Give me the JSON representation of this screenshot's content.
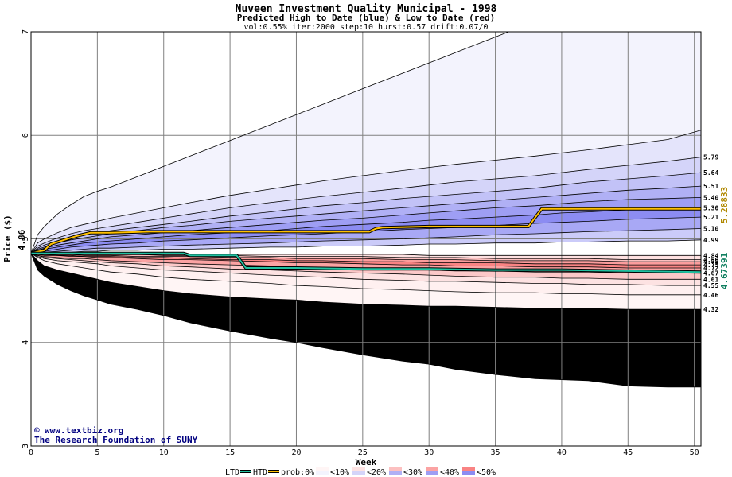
{
  "chart_data": {
    "type": "area",
    "title": "Nuveen Investment Quality Municipal - 1998",
    "subtitle": "Predicted High to Date (blue) &  Low to Date (red)",
    "params": "vol:0.55% iter:2000 step:10 hurst:0.57 drift:0.07/0",
    "xlabel": "Week",
    "ylabel": "Price ($)",
    "xlim": [
      0,
      50.5
    ],
    "ylim": [
      3,
      7
    ],
    "x_ticks": [
      0,
      5,
      10,
      15,
      20,
      25,
      30,
      35,
      40,
      45,
      50
    ],
    "y_ticks": [
      3,
      4,
      5,
      6,
      7
    ],
    "start_price": 4.86,
    "start_price_label": "4.86",
    "grid": true,
    "x": [
      0,
      0.5,
      1,
      2,
      3,
      4,
      5,
      6,
      8,
      10,
      12,
      15,
      18,
      20,
      22,
      25,
      28,
      30,
      32,
      35,
      38,
      40,
      42,
      45,
      48,
      50.5
    ],
    "high_bands": [
      {
        "label": "6.05",
        "values": [
          4.86,
          5.04,
          5.12,
          5.24,
          5.33,
          5.41,
          5.46,
          5.5,
          5.6,
          5.7,
          5.8,
          5.95,
          6.1,
          6.2,
          6.3,
          6.45,
          6.6,
          6.7,
          6.8,
          6.95,
          7.1,
          7.2,
          7.3,
          7.45,
          7.55,
          7.7
        ]
      },
      {
        "label": "5.79",
        "values": [
          4.86,
          4.96,
          5.0,
          5.06,
          5.11,
          5.14,
          5.17,
          5.2,
          5.25,
          5.3,
          5.35,
          5.42,
          5.48,
          5.52,
          5.56,
          5.61,
          5.66,
          5.69,
          5.72,
          5.76,
          5.8,
          5.83,
          5.86,
          5.91,
          5.96,
          6.05
        ]
      },
      {
        "label": "5.64",
        "values": [
          4.86,
          4.93,
          4.96,
          5.01,
          5.05,
          5.08,
          5.1,
          5.12,
          5.16,
          5.2,
          5.24,
          5.3,
          5.35,
          5.38,
          5.41,
          5.45,
          5.49,
          5.52,
          5.55,
          5.58,
          5.61,
          5.64,
          5.67,
          5.71,
          5.75,
          5.79
        ]
      },
      {
        "label": "5.51",
        "values": [
          4.86,
          4.91,
          4.94,
          4.98,
          5.01,
          5.04,
          5.06,
          5.08,
          5.11,
          5.14,
          5.17,
          5.22,
          5.26,
          5.29,
          5.32,
          5.35,
          5.39,
          5.41,
          5.43,
          5.46,
          5.49,
          5.52,
          5.55,
          5.58,
          5.61,
          5.64
        ]
      },
      {
        "label": "5.40",
        "values": [
          4.86,
          4.9,
          4.92,
          4.96,
          4.99,
          5.01,
          5.03,
          5.05,
          5.08,
          5.11,
          5.13,
          5.17,
          5.2,
          5.22,
          5.24,
          5.27,
          5.3,
          5.32,
          5.34,
          5.37,
          5.4,
          5.42,
          5.44,
          5.47,
          5.49,
          5.51
        ]
      },
      {
        "label": "5.30",
        "values": [
          4.86,
          4.89,
          4.91,
          4.94,
          4.96,
          4.98,
          5.0,
          5.02,
          5.04,
          5.06,
          5.08,
          5.11,
          5.14,
          5.16,
          5.18,
          5.2,
          5.23,
          5.25,
          5.27,
          5.3,
          5.32,
          5.34,
          5.36,
          5.38,
          5.39,
          5.4
        ]
      },
      {
        "label": "5.21",
        "values": [
          4.86,
          4.88,
          4.9,
          4.92,
          4.94,
          4.96,
          4.97,
          4.98,
          5.0,
          5.02,
          5.04,
          5.06,
          5.08,
          5.1,
          5.12,
          5.14,
          5.16,
          5.18,
          5.19,
          5.21,
          5.23,
          5.25,
          5.26,
          5.28,
          5.29,
          5.3
        ]
      },
      {
        "label": "5.10",
        "values": [
          4.86,
          4.87,
          4.88,
          4.9,
          4.92,
          4.93,
          4.94,
          4.95,
          4.96,
          4.98,
          4.99,
          5.01,
          5.03,
          5.04,
          5.05,
          5.07,
          5.09,
          5.1,
          5.11,
          5.13,
          5.15,
          5.16,
          5.17,
          5.19,
          5.2,
          5.21
        ]
      },
      {
        "label": "4.99",
        "values": [
          4.86,
          4.87,
          4.87,
          4.88,
          4.89,
          4.9,
          4.91,
          4.91,
          4.92,
          4.93,
          4.94,
          4.95,
          4.96,
          4.97,
          4.98,
          4.99,
          5.0,
          5.01,
          5.02,
          5.04,
          5.05,
          5.06,
          5.07,
          5.08,
          5.09,
          5.1
        ]
      },
      {
        "label": "",
        "values": [
          4.86,
          4.86,
          4.86,
          4.87,
          4.87,
          4.88,
          4.88,
          4.89,
          4.89,
          4.9,
          4.9,
          4.91,
          4.92,
          4.92,
          4.93,
          4.93,
          4.94,
          4.95,
          4.95,
          4.96,
          4.96,
          4.97,
          4.97,
          4.98,
          4.98,
          4.99
        ]
      }
    ],
    "low_bands": [
      {
        "label": "4.84",
        "values": [
          4.86,
          4.86,
          4.86,
          4.86,
          4.86,
          4.86,
          4.86,
          4.86,
          4.86,
          4.86,
          4.85,
          4.85,
          4.85,
          4.85,
          4.85,
          4.85,
          4.85,
          4.84,
          4.84,
          4.84,
          4.84,
          4.84,
          4.84,
          4.84,
          4.84,
          4.84
        ]
      },
      {
        "label": "4.80",
        "values": [
          4.86,
          4.86,
          4.86,
          4.86,
          4.85,
          4.85,
          4.85,
          4.85,
          4.85,
          4.84,
          4.84,
          4.84,
          4.83,
          4.83,
          4.83,
          4.83,
          4.82,
          4.82,
          4.82,
          4.81,
          4.81,
          4.81,
          4.81,
          4.8,
          4.8,
          4.8
        ]
      },
      {
        "label": "4.78",
        "values": [
          4.86,
          4.86,
          4.85,
          4.85,
          4.85,
          4.84,
          4.84,
          4.84,
          4.83,
          4.83,
          4.83,
          4.82,
          4.82,
          4.81,
          4.81,
          4.81,
          4.8,
          4.8,
          4.8,
          4.79,
          4.79,
          4.79,
          4.79,
          4.78,
          4.78,
          4.78
        ]
      },
      {
        "label": "4.75",
        "values": [
          4.86,
          4.85,
          4.85,
          4.84,
          4.84,
          4.83,
          4.83,
          4.83,
          4.82,
          4.82,
          4.81,
          4.8,
          4.8,
          4.79,
          4.79,
          4.78,
          4.78,
          4.77,
          4.77,
          4.77,
          4.76,
          4.76,
          4.76,
          4.75,
          4.75,
          4.75
        ]
      },
      {
        "label": "4.72",
        "values": [
          4.86,
          4.85,
          4.84,
          4.84,
          4.83,
          4.83,
          4.82,
          4.82,
          4.81,
          4.8,
          4.8,
          4.79,
          4.78,
          4.77,
          4.77,
          4.76,
          4.75,
          4.75,
          4.74,
          4.74,
          4.73,
          4.73,
          4.73,
          4.72,
          4.72,
          4.72
        ]
      },
      {
        "label": "4.67",
        "values": [
          4.86,
          4.84,
          4.83,
          4.82,
          4.81,
          4.81,
          4.8,
          4.79,
          4.78,
          4.77,
          4.76,
          4.75,
          4.74,
          4.73,
          4.72,
          4.71,
          4.7,
          4.7,
          4.69,
          4.69,
          4.68,
          4.68,
          4.68,
          4.67,
          4.67,
          4.67
        ]
      },
      {
        "label": "4.61",
        "values": [
          4.86,
          4.84,
          4.82,
          4.81,
          4.8,
          4.79,
          4.78,
          4.77,
          4.76,
          4.74,
          4.73,
          4.71,
          4.7,
          4.69,
          4.68,
          4.67,
          4.66,
          4.65,
          4.64,
          4.63,
          4.63,
          4.62,
          4.62,
          4.61,
          4.61,
          4.61
        ]
      },
      {
        "label": "4.55",
        "values": [
          4.86,
          4.83,
          4.81,
          4.79,
          4.78,
          4.77,
          4.76,
          4.74,
          4.72,
          4.7,
          4.69,
          4.67,
          4.65,
          4.64,
          4.63,
          4.61,
          4.6,
          4.59,
          4.59,
          4.58,
          4.57,
          4.57,
          4.56,
          4.56,
          4.55,
          4.55
        ]
      },
      {
        "label": "4.46",
        "values": [
          4.86,
          4.82,
          4.79,
          4.76,
          4.74,
          4.72,
          4.7,
          4.68,
          4.66,
          4.63,
          4.61,
          4.59,
          4.57,
          4.55,
          4.54,
          4.52,
          4.51,
          4.5,
          4.49,
          4.48,
          4.48,
          4.47,
          4.47,
          4.46,
          4.46,
          4.46
        ]
      },
      {
        "label": "4.32",
        "values": [
          4.86,
          4.79,
          4.74,
          4.7,
          4.67,
          4.64,
          4.61,
          4.58,
          4.54,
          4.5,
          4.47,
          4.44,
          4.42,
          4.41,
          4.39,
          4.37,
          4.36,
          4.35,
          4.35,
          4.34,
          4.33,
          4.33,
          4.33,
          4.32,
          4.32,
          4.32
        ]
      },
      {
        "label": "",
        "values": [
          4.86,
          4.7,
          4.64,
          4.56,
          4.5,
          4.45,
          4.41,
          4.37,
          4.32,
          4.26,
          4.19,
          4.11,
          4.04,
          4.0,
          3.95,
          3.88,
          3.82,
          3.79,
          3.74,
          3.69,
          3.65,
          3.64,
          3.63,
          3.58,
          3.57,
          3.57
        ]
      }
    ],
    "high_colors": [
      "#f3f3fd",
      "#e4e4fb",
      "#d4d4f9",
      "#c2c2f7",
      "#b0b0f5",
      "#9e9ef4",
      "#8c8cf2",
      "#a8a8f5",
      "#cbcbf9",
      "#ebebfd"
    ],
    "low_colors": [
      "#ffffff",
      "#fde0e0",
      "#fcc0c0",
      "#fb9d9d",
      "#f98383",
      "#fba3a3",
      "#fcc8c8",
      "#fde2e2",
      "#fff0f0",
      "#fff5f5"
    ],
    "htd": {
      "name": "HTD",
      "color": "#ffc000",
      "x": [
        0,
        1,
        1.5,
        2.5,
        3.5,
        4.5,
        6,
        9,
        11,
        13,
        15,
        18,
        20,
        22,
        25.5,
        26,
        26.5,
        30,
        33,
        37.5,
        38.5,
        50.5
      ],
      "y": [
        4.86,
        4.89,
        4.95,
        4.99,
        5.03,
        5.06,
        5.06,
        5.07,
        5.07,
        5.07,
        5.07,
        5.07,
        5.07,
        5.07,
        5.07,
        5.1,
        5.11,
        5.12,
        5.12,
        5.12,
        5.29,
        5.29
      ]
    },
    "ltd": {
      "name": "LTD",
      "color": "#20c0a0",
      "x": [
        0,
        3,
        6,
        11.5,
        12,
        15.5,
        16.2,
        20,
        25,
        30,
        35,
        40,
        45,
        50.5
      ],
      "y": [
        4.86,
        4.86,
        4.86,
        4.86,
        4.84,
        4.84,
        4.72,
        4.72,
        4.71,
        4.71,
        4.7,
        4.7,
        4.69,
        4.68
      ]
    },
    "high_final_label": "5.28833",
    "low_final_label": "4.67391",
    "legend": {
      "ltd": "LTD",
      "htd": "HTD",
      "prob_prefix": "prob:0%",
      "items": [
        "<10%",
        "<20%",
        "<30%",
        "<40%",
        "<50%"
      ],
      "item_colors": [
        "#f3f3fd",
        "#d4d4f9",
        "#b0b0f5",
        "#9e9ef4",
        "#8c8cf2"
      ],
      "item_colors_low": [
        "#fff5f5",
        "#fde2e2",
        "#fcc0c0",
        "#fba3a3",
        "#f98383"
      ]
    }
  },
  "credit": {
    "site": "www.textbiz.org",
    "org": "The Research Foundation of SUNY"
  }
}
